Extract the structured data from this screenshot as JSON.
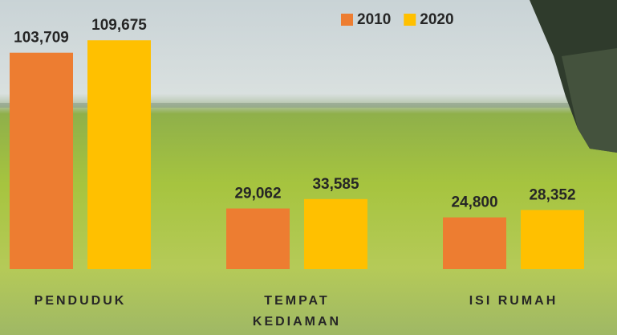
{
  "chart_data": {
    "type": "bar",
    "categories": [
      "PENDUDUK",
      "TEMPAT KEDIAMAN",
      "ISI RUMAH"
    ],
    "series": [
      {
        "name": "2010",
        "color": "#ed7d31",
        "values": [
          103709,
          29062,
          24800
        ],
        "value_labels": [
          "103,709",
          "29,062",
          "24,800"
        ]
      },
      {
        "name": "2020",
        "color": "#ffc000",
        "values": [
          109675,
          33585,
          28352
        ],
        "value_labels": [
          "109,675",
          "33,585",
          "28,352"
        ]
      }
    ],
    "ylim": [
      0,
      129000
    ]
  }
}
